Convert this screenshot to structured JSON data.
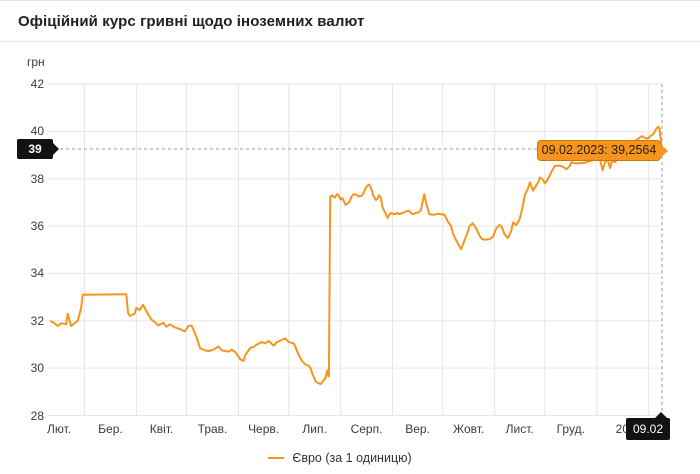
{
  "header": {
    "title": "Офіційний курс гривні щодо іноземних валют"
  },
  "colors": {
    "line": "#F7941E",
    "tooltip_bg": "#F7941E",
    "tooltip_border": "#C87A00",
    "crosshair_badge_bg": "#121212",
    "crosshair_badge_text": "#FFFFFF",
    "grid": "#E6E6E6",
    "crosshair_dash": "#999999",
    "axis_text": "#3C3C3C"
  },
  "chart_data": {
    "type": "line",
    "title": "Офіційний курс гривні щодо іноземних валют",
    "unit_label": "грн",
    "ylabel": "грн",
    "ylim": [
      28,
      42
    ],
    "yticks": [
      42,
      40,
      38,
      36,
      34,
      32,
      30,
      28
    ],
    "xtick_labels": [
      "Лют.",
      "Бер.",
      "Квіт.",
      "Трав.",
      "Черв.",
      "Лип.",
      "Серп.",
      "Вер.",
      "Жовт.",
      "Лист.",
      "Груд.",
      "2023"
    ],
    "x_encoding": "days since 09.02.2022 (range 0–365, ends 09.02.2023)",
    "grid": true,
    "legend_position": "bottom",
    "crosshair": {
      "x_label": "09.02",
      "y_label": "39",
      "value": 39.2564,
      "day": 365
    },
    "tooltip": {
      "text": "09.02.2023: 39,2564"
    },
    "series": [
      {
        "name": "Євро (за 1 одиницю)",
        "color": "#F7941E",
        "points": [
          [
            0,
            31.98
          ],
          [
            2,
            31.9
          ],
          [
            4,
            31.78
          ],
          [
            6,
            31.9
          ],
          [
            9,
            31.85
          ],
          [
            10,
            32.3
          ],
          [
            12,
            31.78
          ],
          [
            14,
            31.9
          ],
          [
            16,
            32.0
          ],
          [
            18,
            32.55
          ],
          [
            19,
            33.1
          ],
          [
            45,
            33.12
          ],
          [
            46,
            32.35
          ],
          [
            47,
            32.2
          ],
          [
            50,
            32.3
          ],
          [
            51,
            32.55
          ],
          [
            53,
            32.45
          ],
          [
            55,
            32.68
          ],
          [
            57,
            32.4
          ],
          [
            60,
            32.05
          ],
          [
            62,
            31.95
          ],
          [
            64,
            31.8
          ],
          [
            67,
            31.92
          ],
          [
            69,
            31.75
          ],
          [
            71,
            31.85
          ],
          [
            74,
            31.72
          ],
          [
            77,
            31.65
          ],
          [
            80,
            31.55
          ],
          [
            82,
            31.78
          ],
          [
            84,
            31.8
          ],
          [
            87,
            31.3
          ],
          [
            89,
            30.85
          ],
          [
            92,
            30.75
          ],
          [
            94,
            30.72
          ],
          [
            97,
            30.78
          ],
          [
            100,
            30.92
          ],
          [
            102,
            30.75
          ],
          [
            106,
            30.7
          ],
          [
            108,
            30.78
          ],
          [
            110,
            30.68
          ],
          [
            113,
            30.38
          ],
          [
            115,
            30.3
          ],
          [
            116,
            30.55
          ],
          [
            119,
            30.85
          ],
          [
            121,
            30.9
          ],
          [
            123,
            31.0
          ],
          [
            126,
            31.1
          ],
          [
            128,
            31.05
          ],
          [
            130,
            31.15
          ],
          [
            133,
            30.95
          ],
          [
            135,
            31.1
          ],
          [
            138,
            31.2
          ],
          [
            140,
            31.25
          ],
          [
            142,
            31.1
          ],
          [
            145,
            31.05
          ],
          [
            146,
            30.9
          ],
          [
            148,
            30.55
          ],
          [
            150,
            30.3
          ],
          [
            152,
            30.15
          ],
          [
            154,
            30.1
          ],
          [
            155,
            30.0
          ],
          [
            156,
            29.8
          ],
          [
            158,
            29.45
          ],
          [
            159,
            29.4
          ],
          [
            161,
            29.32
          ],
          [
            163,
            29.5
          ],
          [
            164,
            29.6
          ],
          [
            165,
            29.9
          ],
          [
            165.5,
            29.7
          ],
          [
            166,
            29.65
          ],
          [
            166.8,
            37.25
          ],
          [
            168,
            37.3
          ],
          [
            169.5,
            37.2
          ],
          [
            171,
            37.35
          ],
          [
            172,
            37.28
          ],
          [
            173,
            37.12
          ],
          [
            174,
            37.18
          ],
          [
            176,
            36.9
          ],
          [
            178,
            37.0
          ],
          [
            180,
            37.3
          ],
          [
            181,
            37.35
          ],
          [
            183,
            37.3
          ],
          [
            184,
            37.25
          ],
          [
            186,
            37.3
          ],
          [
            187,
            37.45
          ],
          [
            188,
            37.6
          ],
          [
            189,
            37.7
          ],
          [
            190,
            37.75
          ],
          [
            191,
            37.65
          ],
          [
            192.5,
            37.3
          ],
          [
            194,
            37.1
          ],
          [
            195,
            37.15
          ],
          [
            196,
            37.3
          ],
          [
            197,
            37.2
          ],
          [
            198,
            36.8
          ],
          [
            200,
            36.5
          ],
          [
            201,
            36.35
          ],
          [
            202,
            36.45
          ],
          [
            203,
            36.55
          ],
          [
            205,
            36.5
          ],
          [
            207,
            36.55
          ],
          [
            208,
            36.5
          ],
          [
            210,
            36.55
          ],
          [
            212,
            36.62
          ],
          [
            214,
            36.65
          ],
          [
            215,
            36.55
          ],
          [
            216,
            36.5
          ],
          [
            218,
            36.55
          ],
          [
            220,
            36.6
          ],
          [
            221,
            36.68
          ],
          [
            223,
            37.35
          ],
          [
            224,
            37.0
          ],
          [
            226,
            36.5
          ],
          [
            229,
            36.48
          ],
          [
            231,
            36.52
          ],
          [
            233,
            36.5
          ],
          [
            235,
            36.48
          ],
          [
            237,
            36.2
          ],
          [
            239,
            36.0
          ],
          [
            240,
            35.7
          ],
          [
            242,
            35.4
          ],
          [
            244,
            35.15
          ],
          [
            245,
            35.02
          ],
          [
            247,
            35.4
          ],
          [
            249,
            35.75
          ],
          [
            250,
            36.0
          ],
          [
            252,
            36.12
          ],
          [
            254,
            35.9
          ],
          [
            256,
            35.6
          ],
          [
            257,
            35.48
          ],
          [
            259,
            35.42
          ],
          [
            262,
            35.45
          ],
          [
            264,
            35.55
          ],
          [
            266,
            35.9
          ],
          [
            268,
            36.05
          ],
          [
            269,
            36.0
          ],
          [
            271,
            35.65
          ],
          [
            273,
            35.5
          ],
          [
            275,
            35.8
          ],
          [
            276,
            36.15
          ],
          [
            278,
            36.05
          ],
          [
            280,
            36.3
          ],
          [
            282,
            36.9
          ],
          [
            283,
            37.3
          ],
          [
            285,
            37.6
          ],
          [
            286,
            37.85
          ],
          [
            288,
            37.5
          ],
          [
            291,
            37.85
          ],
          [
            292,
            38.05
          ],
          [
            294,
            37.95
          ],
          [
            295,
            37.8
          ],
          [
            297,
            38.0
          ],
          [
            299,
            38.3
          ],
          [
            301,
            38.55
          ],
          [
            304,
            38.55
          ],
          [
            306,
            38.5
          ],
          [
            308,
            38.4
          ],
          [
            310,
            38.55
          ],
          [
            311,
            38.7
          ],
          [
            313,
            38.65
          ],
          [
            316,
            38.65
          ],
          [
            319,
            38.68
          ],
          [
            322,
            38.75
          ],
          [
            324,
            38.8
          ],
          [
            327,
            38.85
          ],
          [
            328,
            38.8
          ],
          [
            329.5,
            38.35
          ],
          [
            331,
            38.7
          ],
          [
            332.5,
            38.8
          ],
          [
            334,
            38.45
          ],
          [
            335,
            38.75
          ],
          [
            337,
            38.7
          ],
          [
            338,
            38.8
          ],
          [
            340,
            38.9
          ],
          [
            342,
            39.0
          ],
          [
            344,
            39.1
          ],
          [
            346,
            39.3
          ],
          [
            347,
            39.5
          ],
          [
            349,
            39.6
          ],
          [
            351,
            39.7
          ],
          [
            352,
            39.75
          ],
          [
            353,
            39.8
          ],
          [
            354,
            39.75
          ],
          [
            356,
            39.7
          ],
          [
            357,
            39.72
          ],
          [
            358,
            39.8
          ],
          [
            359,
            39.85
          ],
          [
            360,
            39.9
          ],
          [
            361.5,
            40.1
          ],
          [
            363,
            40.2
          ],
          [
            363.5,
            40.1
          ],
          [
            364,
            39.8
          ],
          [
            364.5,
            39.5
          ],
          [
            365,
            39.2564
          ]
        ]
      }
    ]
  }
}
